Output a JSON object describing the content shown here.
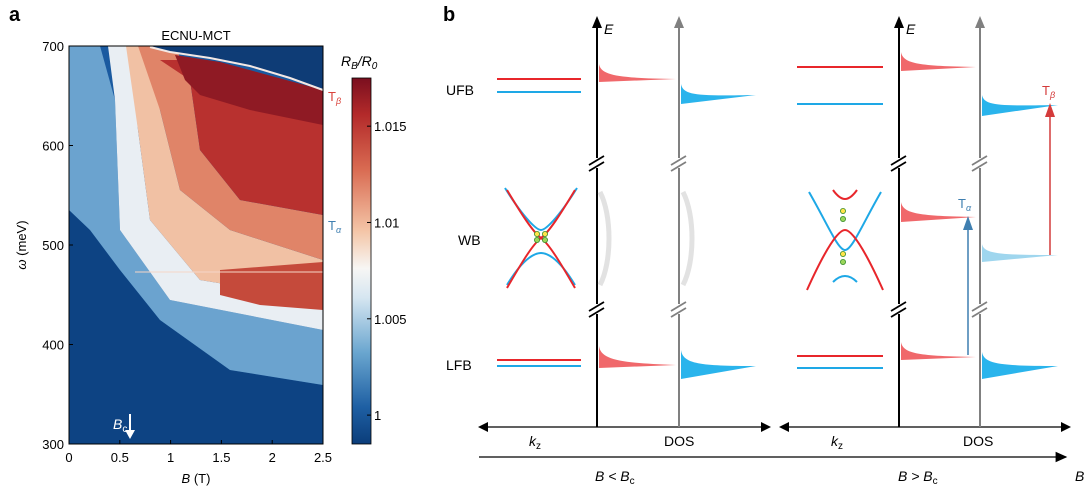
{
  "panel_a": {
    "label": "a",
    "title": "ECNU-MCT",
    "xlabel_var": "B",
    "xlabel_unit": " (T)",
    "ylabel_var": "ω",
    "ylabel_unit": " (meV)",
    "bc_base": "B",
    "bc_sub": "c",
    "t_beta_base": "T",
    "t_beta_sub": "β",
    "t_alpha_base": "T",
    "t_alpha_sub": "α",
    "colorbar_label": "R_B/R_0"
  },
  "panel_b": {
    "label": "b",
    "energy_axis": "E",
    "band_labels": [
      "UFB",
      "WB",
      "LFB"
    ],
    "kz_label": "k",
    "kz_sub": "z",
    "dos_label": "DOS",
    "b_axis_label": "B",
    "cond_left_base": "B < B",
    "cond_left_sub": "c",
    "cond_right_base": "B > B",
    "cond_right_sub": "c",
    "t_alpha_base": "T",
    "t_alpha_sub": "α",
    "t_beta_base": "T",
    "t_beta_sub": "β"
  },
  "colors": {
    "red": "#e8262b",
    "blue": "#1ea8e6",
    "red_fill": "#f0686b",
    "blue_fill": "#2ab4ec",
    "arrow_red": "#d43b3b",
    "arrow_blue": "#3f7fb0"
  },
  "chart_data": {
    "type": "heatmap",
    "title": "ECNU-MCT",
    "xlabel": "B (T)",
    "ylabel": "ω (meV)",
    "xlim": [
      0,
      2.5
    ],
    "ylim": [
      300,
      700
    ],
    "x_ticks": [
      0,
      0.5,
      1,
      1.5,
      2,
      2.5
    ],
    "x_tick_labels": [
      "0",
      "0.5",
      "1",
      "1.5",
      "2",
      "2.5"
    ],
    "y_ticks": [
      300,
      400,
      500,
      600,
      700
    ],
    "y_tick_labels": [
      "300",
      "400",
      "500",
      "600",
      "700"
    ],
    "colorbar": {
      "label": "R_B/R_0",
      "range": [
        0.9985,
        1.0175
      ],
      "ticks": [
        1.0,
        1.005,
        1.01,
        1.015
      ],
      "tick_labels": [
        "1",
        "1.005",
        "1.01",
        "1.015"
      ]
    },
    "annotations": [
      {
        "text": "Bc",
        "x": 0.6,
        "y": 320
      },
      {
        "text": "Tβ",
        "x": 2.5,
        "y": 645
      },
      {
        "text": "Tα",
        "x": 2.5,
        "y": 520
      }
    ]
  }
}
